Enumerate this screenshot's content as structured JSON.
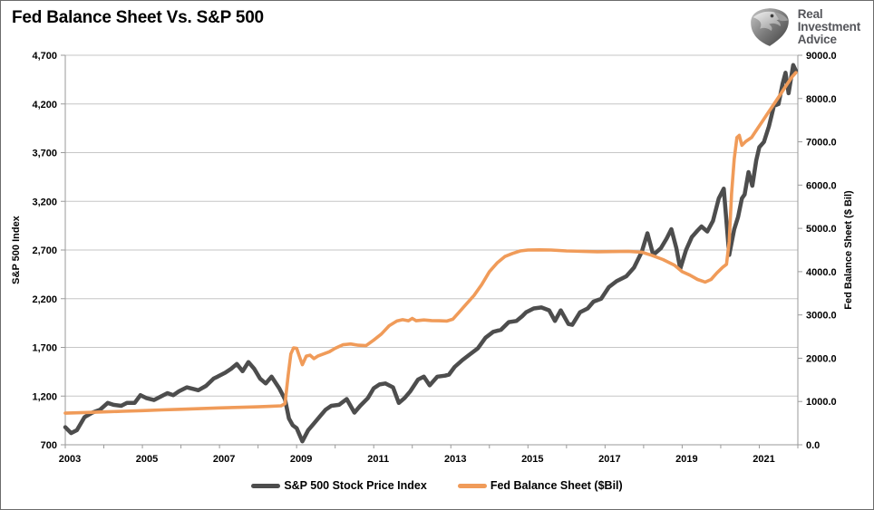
{
  "header": {
    "title": "Fed Balance Sheet Vs. S&P 500"
  },
  "logo": {
    "lines": [
      "Real",
      "Investment",
      "Advice"
    ],
    "icon": "eagle-logo-icon",
    "text_color": "#54555a"
  },
  "colors": {
    "sp500_line": "#4d4d4d",
    "fed_line": "#f09b59",
    "gridline": "#c6c6c6",
    "axis_line": "#9a9a9a",
    "tick_text": "#000000",
    "panel_border": "#6b6b6b"
  },
  "chart_data": {
    "type": "line",
    "title": "Fed Balance Sheet Vs. S&P 500",
    "grid": true,
    "legend_position": "bottom",
    "left_axis": {
      "label": "S&P 500 Index",
      "min": 700,
      "max": 4700,
      "step": 500,
      "tick_labels": [
        "700",
        "1,200",
        "1,700",
        "2,200",
        "2,700",
        "3,200",
        "3,700",
        "4,200",
        "4,700"
      ]
    },
    "right_axis": {
      "label": "Fed Balance Sheet ($ Bil)",
      "min": 0,
      "max": 9000,
      "step": 1000,
      "tick_labels": [
        "0.0",
        "1000.0",
        "2000.0",
        "3000.0",
        "4000.0",
        "5000.0",
        "6000.0",
        "7000.0",
        "8000.0",
        "9000.0"
      ]
    },
    "x_axis": {
      "min": 2003,
      "max": 2022,
      "minor_tick_every": 1,
      "tick_labels": [
        "2003",
        "2005",
        "2007",
        "2009",
        "2011",
        "2013",
        "2015",
        "2017",
        "2019",
        "2021"
      ],
      "tick_years": [
        2003,
        2005,
        2007,
        2009,
        2011,
        2013,
        2015,
        2017,
        2019,
        2021
      ]
    },
    "series": [
      {
        "name": "S&P 500 Stock Price Index",
        "axis": "left",
        "color": "#4d4d4d",
        "width": 4.5,
        "points": [
          [
            2003.0,
            880
          ],
          [
            2003.15,
            820
          ],
          [
            2003.3,
            850
          ],
          [
            2003.5,
            985
          ],
          [
            2003.7,
            1030
          ],
          [
            2003.9,
            1060
          ],
          [
            2004.1,
            1130
          ],
          [
            2004.25,
            1110
          ],
          [
            2004.45,
            1100
          ],
          [
            2004.6,
            1130
          ],
          [
            2004.8,
            1130
          ],
          [
            2004.95,
            1210
          ],
          [
            2005.1,
            1180
          ],
          [
            2005.3,
            1160
          ],
          [
            2005.5,
            1200
          ],
          [
            2005.65,
            1230
          ],
          [
            2005.8,
            1210
          ],
          [
            2005.95,
            1250
          ],
          [
            2006.15,
            1290
          ],
          [
            2006.35,
            1270
          ],
          [
            2006.45,
            1260
          ],
          [
            2006.65,
            1305
          ],
          [
            2006.85,
            1380
          ],
          [
            2006.95,
            1400
          ],
          [
            2007.15,
            1440
          ],
          [
            2007.3,
            1480
          ],
          [
            2007.45,
            1530
          ],
          [
            2007.6,
            1455
          ],
          [
            2007.75,
            1549
          ],
          [
            2007.9,
            1480
          ],
          [
            2008.05,
            1380
          ],
          [
            2008.2,
            1330
          ],
          [
            2008.35,
            1400
          ],
          [
            2008.55,
            1280
          ],
          [
            2008.7,
            1165
          ],
          [
            2008.8,
            970
          ],
          [
            2008.9,
            900
          ],
          [
            2009.0,
            870
          ],
          [
            2009.15,
            735
          ],
          [
            2009.3,
            850
          ],
          [
            2009.45,
            920
          ],
          [
            2009.6,
            990
          ],
          [
            2009.75,
            1060
          ],
          [
            2009.9,
            1100
          ],
          [
            2010.1,
            1110
          ],
          [
            2010.3,
            1170
          ],
          [
            2010.5,
            1030
          ],
          [
            2010.65,
            1100
          ],
          [
            2010.85,
            1180
          ],
          [
            2011.0,
            1280
          ],
          [
            2011.15,
            1320
          ],
          [
            2011.3,
            1330
          ],
          [
            2011.5,
            1290
          ],
          [
            2011.65,
            1130
          ],
          [
            2011.8,
            1180
          ],
          [
            2011.95,
            1250
          ],
          [
            2012.15,
            1370
          ],
          [
            2012.3,
            1400
          ],
          [
            2012.45,
            1310
          ],
          [
            2012.65,
            1400
          ],
          [
            2012.85,
            1410
          ],
          [
            2012.95,
            1420
          ],
          [
            2013.1,
            1500
          ],
          [
            2013.3,
            1570
          ],
          [
            2013.5,
            1630
          ],
          [
            2013.7,
            1690
          ],
          [
            2013.9,
            1800
          ],
          [
            2014.1,
            1860
          ],
          [
            2014.3,
            1880
          ],
          [
            2014.5,
            1960
          ],
          [
            2014.7,
            1972
          ],
          [
            2014.85,
            2020
          ],
          [
            2014.95,
            2060
          ],
          [
            2015.15,
            2100
          ],
          [
            2015.35,
            2110
          ],
          [
            2015.55,
            2080
          ],
          [
            2015.7,
            1972
          ],
          [
            2015.85,
            2080
          ],
          [
            2016.05,
            1940
          ],
          [
            2016.15,
            1932
          ],
          [
            2016.35,
            2060
          ],
          [
            2016.55,
            2100
          ],
          [
            2016.7,
            2170
          ],
          [
            2016.9,
            2200
          ],
          [
            2017.1,
            2320
          ],
          [
            2017.3,
            2380
          ],
          [
            2017.55,
            2430
          ],
          [
            2017.75,
            2520
          ],
          [
            2017.95,
            2680
          ],
          [
            2018.1,
            2872
          ],
          [
            2018.25,
            2650
          ],
          [
            2018.45,
            2720
          ],
          [
            2018.6,
            2820
          ],
          [
            2018.72,
            2914
          ],
          [
            2018.85,
            2720
          ],
          [
            2018.95,
            2507
          ],
          [
            2019.1,
            2700
          ],
          [
            2019.25,
            2834
          ],
          [
            2019.4,
            2900
          ],
          [
            2019.5,
            2942
          ],
          [
            2019.65,
            2890
          ],
          [
            2019.8,
            3000
          ],
          [
            2019.95,
            3230
          ],
          [
            2020.08,
            3330
          ],
          [
            2020.22,
            2650
          ],
          [
            2020.35,
            2912
          ],
          [
            2020.45,
            3040
          ],
          [
            2020.55,
            3230
          ],
          [
            2020.62,
            3270
          ],
          [
            2020.72,
            3500
          ],
          [
            2020.82,
            3360
          ],
          [
            2020.92,
            3620
          ],
          [
            2021.0,
            3756
          ],
          [
            2021.12,
            3810
          ],
          [
            2021.25,
            3970
          ],
          [
            2021.38,
            4180
          ],
          [
            2021.5,
            4200
          ],
          [
            2021.6,
            4400
          ],
          [
            2021.68,
            4520
          ],
          [
            2021.76,
            4310
          ],
          [
            2021.88,
            4600
          ],
          [
            2021.95,
            4540
          ]
        ]
      },
      {
        "name": "Fed Balance Sheet ($Bil)",
        "axis": "right",
        "color": "#f09b59",
        "width": 3.6,
        "points": [
          [
            2003.0,
            730
          ],
          [
            2003.5,
            745
          ],
          [
            2004.0,
            760
          ],
          [
            2004.5,
            775
          ],
          [
            2005.0,
            790
          ],
          [
            2005.5,
            805
          ],
          [
            2006.0,
            820
          ],
          [
            2006.5,
            835
          ],
          [
            2007.0,
            852
          ],
          [
            2007.5,
            865
          ],
          [
            2008.0,
            878
          ],
          [
            2008.3,
            888
          ],
          [
            2008.6,
            900
          ],
          [
            2008.7,
            950
          ],
          [
            2008.78,
            1600
          ],
          [
            2008.85,
            2100
          ],
          [
            2008.92,
            2240
          ],
          [
            2009.0,
            2230
          ],
          [
            2009.07,
            2050
          ],
          [
            2009.15,
            1850
          ],
          [
            2009.25,
            2050
          ],
          [
            2009.35,
            2070
          ],
          [
            2009.45,
            1990
          ],
          [
            2009.55,
            2050
          ],
          [
            2009.7,
            2100
          ],
          [
            2009.85,
            2150
          ],
          [
            2010.0,
            2230
          ],
          [
            2010.2,
            2310
          ],
          [
            2010.4,
            2330
          ],
          [
            2010.6,
            2300
          ],
          [
            2010.8,
            2290
          ],
          [
            2011.0,
            2420
          ],
          [
            2011.2,
            2560
          ],
          [
            2011.4,
            2750
          ],
          [
            2011.6,
            2860
          ],
          [
            2011.75,
            2890
          ],
          [
            2011.9,
            2865
          ],
          [
            2012.0,
            2920
          ],
          [
            2012.1,
            2865
          ],
          [
            2012.3,
            2885
          ],
          [
            2012.5,
            2870
          ],
          [
            2012.7,
            2865
          ],
          [
            2012.9,
            2860
          ],
          [
            2013.05,
            2900
          ],
          [
            2013.2,
            3050
          ],
          [
            2013.4,
            3250
          ],
          [
            2013.6,
            3450
          ],
          [
            2013.8,
            3700
          ],
          [
            2014.0,
            4000
          ],
          [
            2014.2,
            4200
          ],
          [
            2014.4,
            4350
          ],
          [
            2014.6,
            4420
          ],
          [
            2014.8,
            4480
          ],
          [
            2015.0,
            4500
          ],
          [
            2015.3,
            4505
          ],
          [
            2015.6,
            4500
          ],
          [
            2016.0,
            4480
          ],
          [
            2016.4,
            4470
          ],
          [
            2016.8,
            4460
          ],
          [
            2017.2,
            4465
          ],
          [
            2017.6,
            4470
          ],
          [
            2017.95,
            4450
          ],
          [
            2018.2,
            4380
          ],
          [
            2018.5,
            4280
          ],
          [
            2018.8,
            4150
          ],
          [
            2019.0,
            4000
          ],
          [
            2019.2,
            3920
          ],
          [
            2019.4,
            3820
          ],
          [
            2019.6,
            3760
          ],
          [
            2019.75,
            3820
          ],
          [
            2019.9,
            3970
          ],
          [
            2020.05,
            4100
          ],
          [
            2020.15,
            4170
          ],
          [
            2020.22,
            4700
          ],
          [
            2020.28,
            5800
          ],
          [
            2020.35,
            6600
          ],
          [
            2020.42,
            7100
          ],
          [
            2020.48,
            7150
          ],
          [
            2020.55,
            6920
          ],
          [
            2020.65,
            7010
          ],
          [
            2020.8,
            7100
          ],
          [
            2020.95,
            7300
          ],
          [
            2021.1,
            7500
          ],
          [
            2021.25,
            7700
          ],
          [
            2021.4,
            7900
          ],
          [
            2021.55,
            8100
          ],
          [
            2021.7,
            8300
          ],
          [
            2021.85,
            8500
          ],
          [
            2021.95,
            8600
          ]
        ]
      }
    ]
  }
}
